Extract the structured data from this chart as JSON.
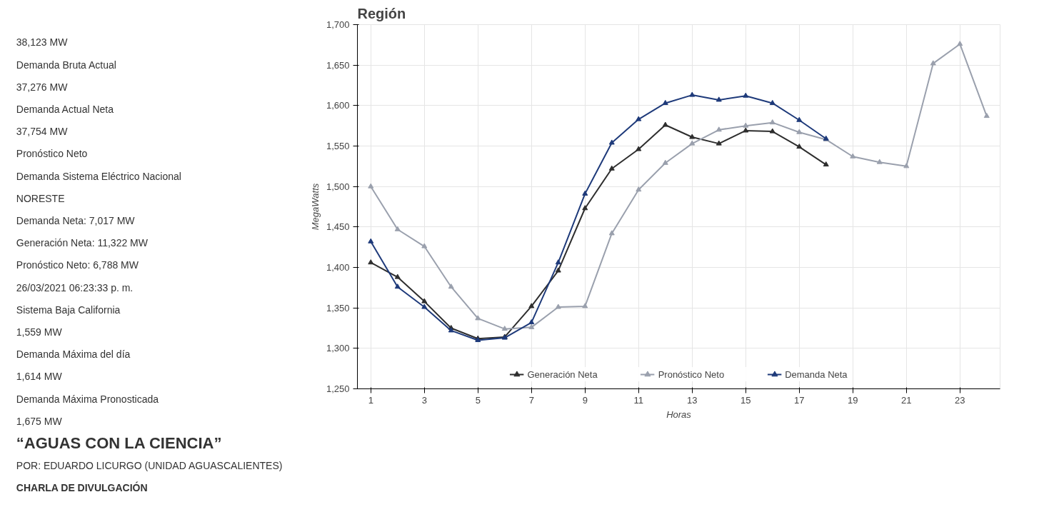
{
  "chart_data": [
    {
      "type": "other",
      "annotations": [
        "38,123 MW",
        "Demanda Bruta Actual",
        "37,276 MW",
        "Demanda Actual Neta",
        "37,754 MW",
        "Pronóstico Neto",
        "Demanda Sistema Eléctrico Nacional",
        "NORESTE",
        "Demanda Neta: 7,017 MW",
        "Generación Neta: 11,322 MW",
        "Pronóstico Neto: 6,788 MW",
        "26/03/2021 06:23:33 p. m.",
        "Sistema Baja California",
        "1,559 MW",
        "Demanda Máxima del día",
        "1,614 MW",
        "Demanda Máxima Pronosticada",
        "1,675 MW",
        "“AGUAS CON LA CIENCIA”",
        "POR:  EDUARDO LICURGO  (UNIDAD AGUASCALIENTES)",
        "CHARLA DE DIVULGACIÓN"
      ]
    },
    {
      "type": "line",
      "title": "Región",
      "xlabel": "Horas",
      "ylabel": "MegaWatts",
      "xlim": [
        0.5,
        24.5
      ],
      "xticks": [
        1,
        3,
        5,
        7,
        9,
        11,
        13,
        15,
        17,
        19,
        21,
        23
      ],
      "ylim": [
        1250,
        1700
      ],
      "yticks": [
        {
          "value": 1250,
          "label": "1,250"
        },
        {
          "value": 1300,
          "label": "1,300"
        },
        {
          "value": 1350,
          "label": "1,350"
        },
        {
          "value": 1400,
          "label": "1,400"
        },
        {
          "value": 1450,
          "label": "1,450"
        },
        {
          "value": 1500,
          "label": "1,500"
        },
        {
          "value": 1550,
          "label": "1,550"
        },
        {
          "value": 1600,
          "label": "1,600"
        },
        {
          "value": 1650,
          "label": "1,650"
        },
        {
          "value": 1700,
          "label": "1,700"
        }
      ],
      "grid": true,
      "legend": "bottom",
      "marker": "triangle",
      "line_style": "solid",
      "series": [
        {
          "name": "Generación Neta",
          "color": "#2e2e2e",
          "x": [
            1,
            2,
            3,
            4,
            5,
            6,
            7,
            8,
            9,
            10,
            11,
            12,
            13,
            14,
            15,
            16,
            17,
            18
          ],
          "values": [
            1406,
            1388,
            1358,
            1325,
            1312,
            1314,
            1352,
            1396,
            1473,
            1522,
            1546,
            1576,
            1561,
            1553,
            1569,
            1568,
            1549,
            1527
          ]
        },
        {
          "name": "Pronóstico Neto",
          "color": "#9aa0ad",
          "x": [
            1,
            2,
            3,
            4,
            5,
            6,
            7,
            8,
            9,
            10,
            11,
            12,
            13,
            14,
            15,
            16,
            17,
            18,
            19,
            20,
            21,
            22,
            23,
            24
          ],
          "values": [
            1500,
            1447,
            1426,
            1376,
            1337,
            1324,
            1326,
            1351,
            1352,
            1442,
            1496,
            1529,
            1553,
            1570,
            1575,
            1579,
            1567,
            1558,
            1537,
            1530,
            1525,
            1652,
            1676,
            1587
          ]
        },
        {
          "name": "Demanda Neta",
          "color": "#1e3a7a",
          "x": [
            1,
            2,
            3,
            4,
            5,
            6,
            7,
            8,
            9,
            10,
            11,
            12,
            13,
            14,
            15,
            16,
            17,
            18
          ],
          "values": [
            1432,
            1376,
            1351,
            1322,
            1310,
            1313,
            1332,
            1406,
            1491,
            1554,
            1583,
            1603,
            1613,
            1607,
            1612,
            1603,
            1582,
            1559
          ]
        }
      ]
    }
  ]
}
